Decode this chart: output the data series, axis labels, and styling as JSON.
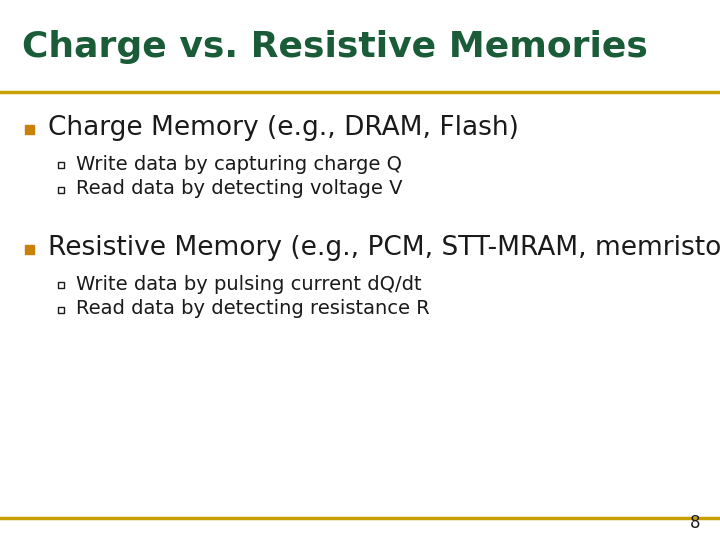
{
  "title": "Charge vs. Resistive Memories",
  "title_color": "#1a5c38",
  "title_fontsize": 26,
  "separator_color": "#c8a000",
  "background_color": "#ffffff",
  "bullet_color": "#c8820a",
  "bullet1_text": "Charge Memory (e.g., DRAM, Flash)",
  "bullet1_fontsize": 19,
  "bullet1_sub": [
    "Write data by capturing charge Q",
    "Read data by detecting voltage V"
  ],
  "bullet2_text": "Resistive Memory (e.g., PCM, STT-MRAM, memristors)",
  "bullet2_fontsize": 19,
  "bullet2_sub": [
    "Write data by pulsing current dQ/dt",
    "Read data by detecting resistance R"
  ],
  "sub_fontsize": 14,
  "text_color": "#1a1a1a",
  "page_number": "8",
  "page_num_fontsize": 12
}
